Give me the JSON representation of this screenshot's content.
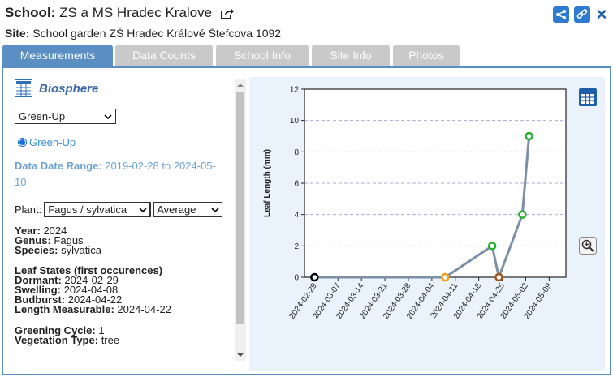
{
  "header": {
    "school_label": "School:",
    "school_name": "ZS a MS Hradec Kralove",
    "site_label": "Site:",
    "site_name": "School garden ZŠ Hradec Králové Štefcova 1092"
  },
  "tabs": [
    {
      "label": "Measurements"
    },
    {
      "label": "Data Counts"
    },
    {
      "label": "School Info"
    },
    {
      "label": "Site Info"
    },
    {
      "label": "Photos"
    }
  ],
  "left": {
    "section_title": "Biosphere",
    "protocol_select": "Green-Up",
    "radio_label": "Green-Up",
    "range_label": "Data Date Range:",
    "range_value": "2019-02-28 to 2024-05-10",
    "plant_label": "Plant:",
    "plant_select": "Fagus / sylvatica",
    "stat_select": "Average",
    "year_label": "Year:",
    "year": "2024",
    "genus_label": "Genus:",
    "genus": "Fagus",
    "species_label": "Species:",
    "species": "sylvatica",
    "leaf_states_title": "Leaf States (first occurences)",
    "dormant_label": "Dormant:",
    "dormant": "2024-02-29",
    "swelling_label": "Swelling:",
    "swelling": "2024-04-08",
    "budburst_label": "Budburst:",
    "budburst": "2024-04-22",
    "length_label": "Length Measurable:",
    "length": "2024-04-22",
    "greening_label": "Greening Cycle:",
    "greening": "1",
    "vegetation_label": "Vegetation Type:",
    "vegetation": "tree"
  },
  "chart_data": {
    "type": "line",
    "ylabel": "Leaf Length (mm)",
    "ylim": [
      0,
      12
    ],
    "yticks": [
      "0",
      "2",
      "4",
      "6",
      "8",
      "10",
      "12"
    ],
    "xlim": [
      "2024-02-26",
      "2024-05-14"
    ],
    "xticks": [
      "2024-02-29",
      "2024-03-07",
      "2024-03-14",
      "2024-03-21",
      "2024-03-28",
      "2024-04-04",
      "2024-04-11",
      "2024-04-18",
      "2024-04-25",
      "2024-05-02",
      "2024-05-09"
    ],
    "grid": true,
    "points": [
      {
        "x": "2024-02-29",
        "y": 0,
        "color": "#000000"
      },
      {
        "x": "2024-04-08",
        "y": 0,
        "color": "#f39c12"
      },
      {
        "x": "2024-04-22",
        "y": 2,
        "color": "#22b02a"
      },
      {
        "x": "2024-04-24",
        "y": 0,
        "color": "#a0551c"
      },
      {
        "x": "2024-05-01",
        "y": 4,
        "color": "#22b02a"
      },
      {
        "x": "2024-05-03",
        "y": 9,
        "color": "#22b02a"
      }
    ]
  }
}
